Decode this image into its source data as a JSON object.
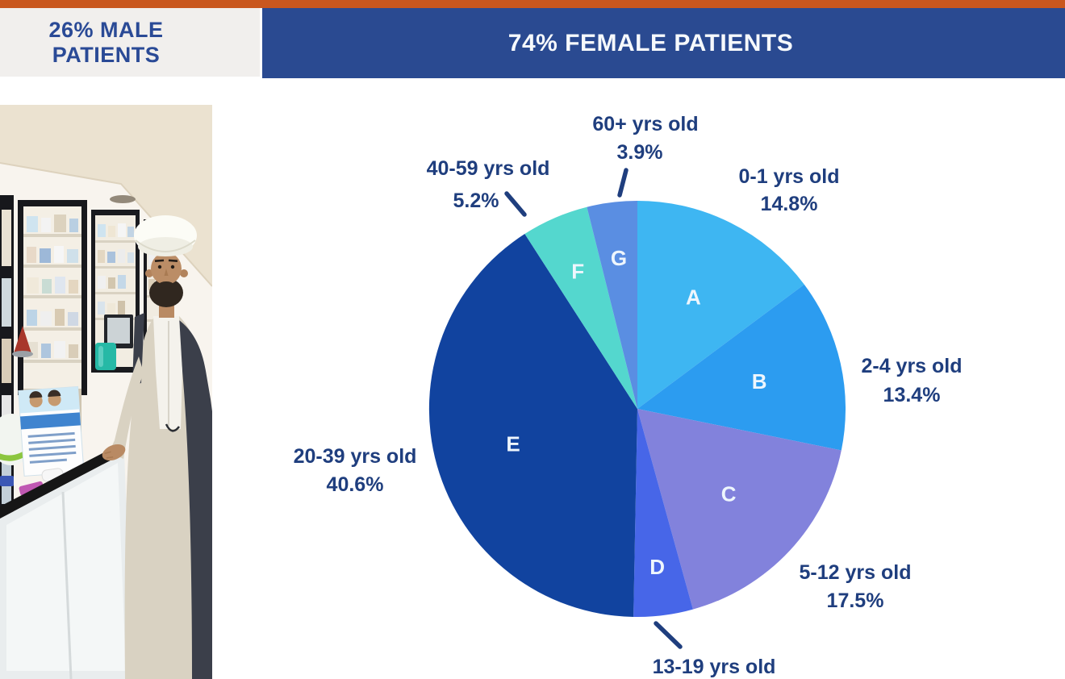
{
  "header": {
    "male_banner": {
      "line1": "26% MALE",
      "line2": "PATIENTS"
    },
    "female_banner": "74% FEMALE PATIENTS",
    "colors": {
      "accent_orange": "#c9571e",
      "banner_blue": "#2a4a91",
      "male_banner_bg": "#f1efed",
      "male_banner_text": "#2a4a96",
      "pie_label_text": "#1f3e7e"
    }
  },
  "photo": {
    "description": "Pharmacist with white turban and beige robe standing at a white pharmacy counter in front of shelves of products"
  },
  "chart_data": {
    "type": "pie",
    "unit": "%",
    "direction": "clockwise",
    "start_angle_deg": 0,
    "legend_position": "outside-labels",
    "label_color": "#1f3e7e",
    "letter_color": "#eef6fd",
    "slices": [
      {
        "letter": "A",
        "label": "0-1 yrs old",
        "value": 14.8,
        "pct_label": "14.8%",
        "color": "#3eb6f2"
      },
      {
        "letter": "B",
        "label": "2-4 yrs old",
        "value": 13.4,
        "pct_label": "13.4%",
        "color": "#2c9cf0"
      },
      {
        "letter": "C",
        "label": "5-12 yrs old",
        "value": 17.5,
        "pct_label": "17.5%",
        "color": "#8282dc"
      },
      {
        "letter": "D",
        "label": "13-19 yrs old",
        "value": 4.6,
        "pct_label": "",
        "color": "#4766e8"
      },
      {
        "letter": "E",
        "label": "20-39 yrs old",
        "value": 40.6,
        "pct_label": "40.6%",
        "color": "#11439f"
      },
      {
        "letter": "F",
        "label": "40-59 yrs old",
        "value": 5.2,
        "pct_label": "5.2%",
        "color": "#54d7ce"
      },
      {
        "letter": "G",
        "label": "60+ yrs old",
        "value": 3.9,
        "pct_label": "3.9%",
        "color": "#5a8ee2"
      }
    ]
  }
}
